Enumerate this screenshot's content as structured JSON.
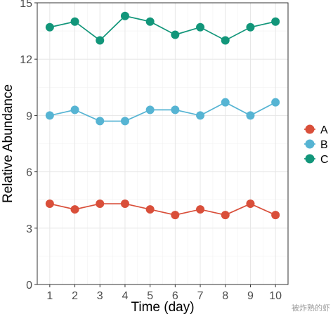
{
  "chart_data": {
    "type": "line",
    "xlabel": "Time (day)",
    "ylabel": "Relative Abundance",
    "x": [
      1,
      2,
      3,
      4,
      5,
      6,
      7,
      8,
      9,
      10
    ],
    "xlim": [
      0.5,
      10.5
    ],
    "ylim": [
      0,
      15
    ],
    "xticks": [
      1,
      2,
      3,
      4,
      5,
      6,
      7,
      8,
      9,
      10
    ],
    "yticks": [
      0,
      3,
      6,
      9,
      12,
      15
    ],
    "grid": true,
    "legend_position": "right",
    "series": [
      {
        "name": "A",
        "color": "#d94f3a",
        "values": [
          4.3,
          4.0,
          4.3,
          4.3,
          4.0,
          3.7,
          4.0,
          3.7,
          4.3,
          3.7
        ]
      },
      {
        "name": "B",
        "color": "#56b4d3",
        "values": [
          9.0,
          9.3,
          8.7,
          8.7,
          9.3,
          9.3,
          9.0,
          9.7,
          9.0,
          9.7
        ]
      },
      {
        "name": "C",
        "color": "#12967a",
        "values": [
          13.7,
          14.0,
          13.0,
          14.3,
          14.0,
          13.3,
          13.7,
          13.0,
          13.7,
          14.0
        ]
      }
    ]
  },
  "watermark": "被炸熟的虾"
}
